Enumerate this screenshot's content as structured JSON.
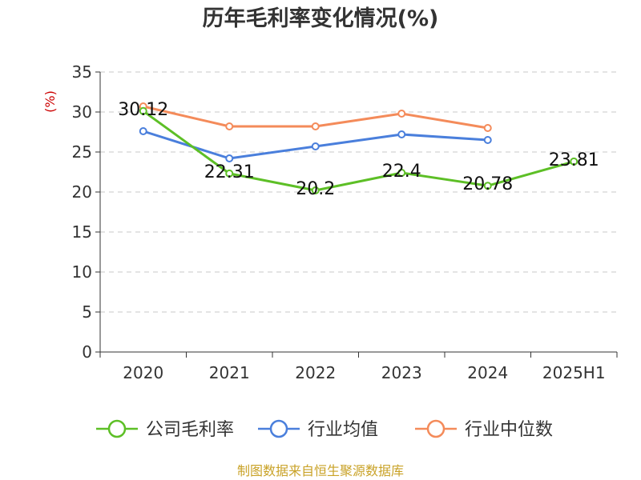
{
  "title": "历年毛利率变化情况(%)",
  "footer": "制图数据来自恒生聚源数据库",
  "chart_data": {
    "type": "line",
    "title": "历年毛利率变化情况(%)",
    "ylabel": "(%)",
    "xlabel": "",
    "categories": [
      "2020",
      "2021",
      "2022",
      "2023",
      "2024",
      "2025H1"
    ],
    "ylim": [
      0,
      35
    ],
    "yticks": [
      0,
      5,
      10,
      15,
      20,
      25,
      30,
      35
    ],
    "grid": true,
    "legend_position": "bottom",
    "series": [
      {
        "name": "公司毛利率",
        "color": "#5dbf26",
        "values": [
          30.12,
          22.31,
          20.2,
          22.4,
          20.78,
          23.81
        ],
        "labels": [
          "30.12",
          "22.31",
          "20.2",
          "22.4",
          "20.78",
          "23.81"
        ]
      },
      {
        "name": "行业均值",
        "color": "#4a7fdc",
        "values": [
          27.6,
          24.2,
          25.7,
          27.2,
          26.5,
          null
        ]
      },
      {
        "name": "行业中位数",
        "color": "#f48b5a",
        "values": [
          30.7,
          28.2,
          28.2,
          29.8,
          28.0,
          null
        ]
      }
    ]
  }
}
